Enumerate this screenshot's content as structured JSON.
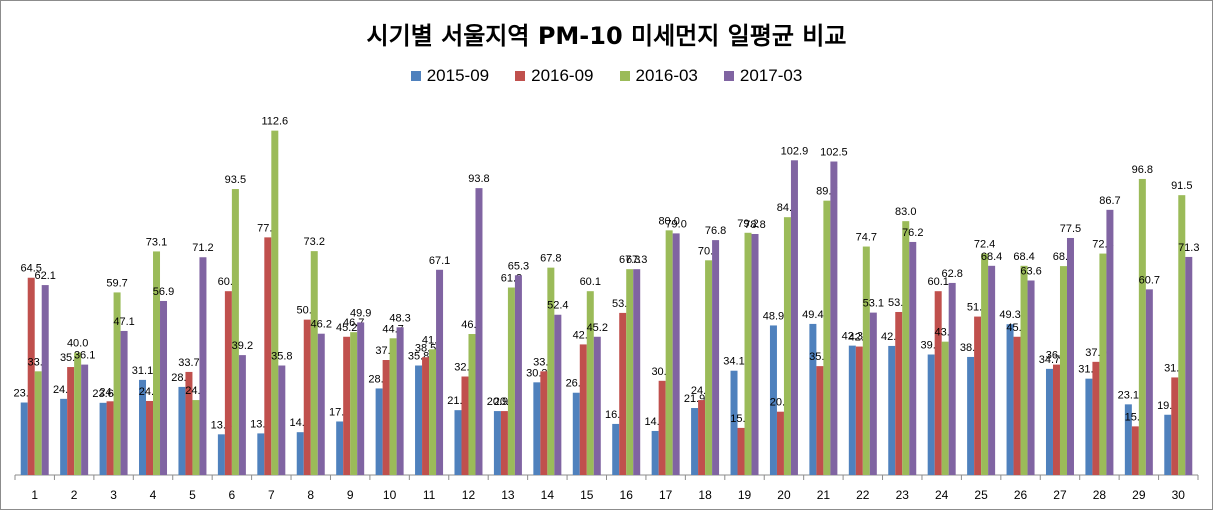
{
  "chart_data": {
    "type": "bar",
    "title": "시기별 서울지역 PM-10 미세먼지 일평균 비교",
    "xlabel": "",
    "ylabel": "",
    "ylim": [
      0,
      120
    ],
    "grid": false,
    "legend_position": "top",
    "categories": [
      "1",
      "2",
      "3",
      "4",
      "5",
      "6",
      "7",
      "8",
      "9",
      "10",
      "11",
      "12",
      "13",
      "14",
      "15",
      "16",
      "17",
      "18",
      "19",
      "20",
      "21",
      "22",
      "23",
      "24",
      "25",
      "26",
      "27",
      "28",
      "29",
      "30"
    ],
    "series": [
      {
        "name": "2015-09",
        "color": "#4f81bd",
        "values": [
          23.7,
          24.9,
          23.6,
          31.1,
          28.8,
          13.3,
          13.6,
          14.0,
          17.5,
          28.3,
          35.8,
          21.2,
          20.9,
          30.3,
          26.9,
          16.7,
          14.4,
          21.9,
          34.1,
          48.9,
          49.4,
          42.3,
          42.2,
          39.4,
          38.6,
          49.3,
          34.7,
          31.5,
          23.1,
          19.7
        ]
      },
      {
        "name": "2016-09",
        "color": "#c0504d",
        "values": [
          64.5,
          35.3,
          24.1,
          24.2,
          33.7,
          60.1,
          77.7,
          50.8,
          45.2,
          37.6,
          38.5,
          32.2,
          20.9,
          33.9,
          42.7,
          53.0,
          30.8,
          24.5,
          15.4,
          20.7,
          35.6,
          42.0,
          53.3,
          60.1,
          51.8,
          45.2,
          36.1,
          37.0,
          15.9,
          31.9
        ]
      },
      {
        "name": "2016-03",
        "color": "#9bbb59",
        "values": [
          33.9,
          40.0,
          59.7,
          73.1,
          24.5,
          93.5,
          112.6,
          73.2,
          46.7,
          44.7,
          41.1,
          46.1,
          61.3,
          67.8,
          60.1,
          67.3,
          80.0,
          70.2,
          79.2,
          84.3,
          89.7,
          74.7,
          83.0,
          43.6,
          72.4,
          68.4,
          68.3,
          72.4,
          96.8,
          91.5
        ]
      },
      {
        "name": "2017-03",
        "color": "#8064a2",
        "values": [
          62.1,
          36.1,
          47.1,
          56.9,
          71.2,
          39.2,
          35.8,
          46.2,
          49.9,
          48.3,
          67.1,
          93.8,
          65.3,
          52.4,
          45.2,
          67.3,
          79.0,
          76.8,
          78.8,
          102.9,
          102.5,
          53.1,
          76.2,
          62.8,
          68.4,
          63.6,
          77.5,
          86.7,
          60.7,
          71.3
        ]
      }
    ]
  }
}
